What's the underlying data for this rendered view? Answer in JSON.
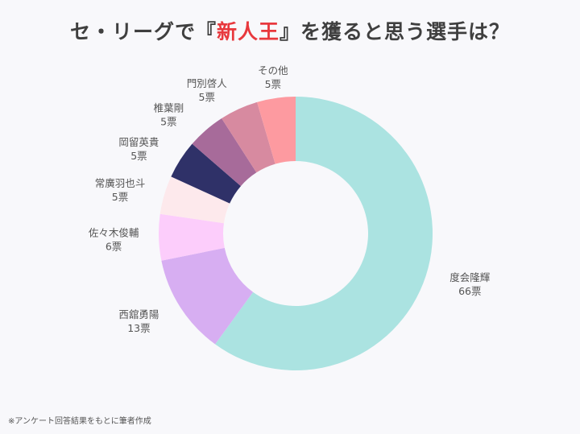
{
  "title": {
    "prefix": "セ・リーグで『",
    "highlight": "新人王",
    "suffix": "』を獲ると思う選手は？"
  },
  "footnote": "※アンケート回答結果をもとに筆者作成",
  "chart_data": {
    "type": "donut",
    "title": "セ・リーグで『新人王』を獲ると思う選手は？",
    "unit": "票",
    "start": "12 o'clock",
    "direction": "clockwise",
    "slices": [
      {
        "name": "度会隆輝",
        "value": 66,
        "label": "66票",
        "color": "#abe3e1"
      },
      {
        "name": "西舘勇陽",
        "value": 13,
        "label": "13票",
        "color": "#d7aef2"
      },
      {
        "name": "佐々木俊輔",
        "value": 6,
        "label": "6票",
        "color": "#fccdfb"
      },
      {
        "name": "常廣羽也斗",
        "value": 5,
        "label": "5票",
        "color": "#fde9ec"
      },
      {
        "name": "岡留英貴",
        "value": 5,
        "label": "5票",
        "color": "#2f3168"
      },
      {
        "name": "椎葉剛",
        "value": 5,
        "label": "5票",
        "color": "#a76b9a"
      },
      {
        "name": "門別啓人",
        "value": 5,
        "label": "5票",
        "color": "#d78aa0"
      },
      {
        "name": "その他",
        "value": 5,
        "label": "5票",
        "color": "#fd9aa0"
      }
    ]
  }
}
